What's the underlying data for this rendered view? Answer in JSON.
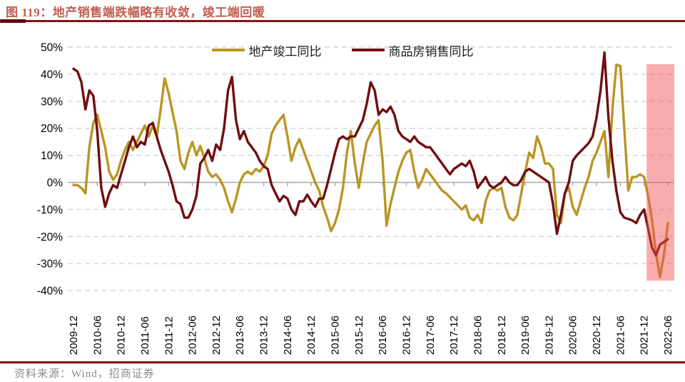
{
  "header": {
    "title": "图 119：地产销售端跌幅略有收敛，竣工端回暖"
  },
  "footer": {
    "source_label": "资料来源：Wind，招商证券"
  },
  "colors": {
    "title_text": "#C05F52",
    "rule_dark_red": "#7D1618",
    "grid_dashed": "#D5D5D5",
    "grid_zero": "#A8A8A8",
    "axis_text": "#000000",
    "highlight_band": "#F24E4E",
    "footer_text": "#8C8C8C"
  },
  "chart_data": {
    "type": "line",
    "title": "",
    "xlabel": "",
    "ylabel": "",
    "y_unit": "%",
    "ylim": [
      -40,
      50
    ],
    "grid": "horizontal-dashed",
    "legend_position": "top-center",
    "y_ticks": [
      {
        "v": 50,
        "label": "50%"
      },
      {
        "v": 40,
        "label": "40%"
      },
      {
        "v": 30,
        "label": "30%"
      },
      {
        "v": 20,
        "label": "20%"
      },
      {
        "v": 10,
        "label": "10%"
      },
      {
        "v": 0,
        "label": "0%"
      },
      {
        "v": -10,
        "label": "-10%"
      },
      {
        "v": -20,
        "label": "-20%"
      },
      {
        "v": -30,
        "label": "-30%"
      },
      {
        "v": -40,
        "label": "-40%"
      }
    ],
    "x_start": "2009-12",
    "x_end": "2022-06",
    "x_step_months": 1,
    "x_tick_every_months": 6,
    "x_tick_labels": [
      "2009-12",
      "2010-06",
      "2010-12",
      "2011-06",
      "2011-12",
      "2012-06",
      "2012-12",
      "2013-06",
      "2013-12",
      "2014-06",
      "2014-12",
      "2015-06",
      "2015-12",
      "2016-06",
      "2016-12",
      "2017-06",
      "2017-12",
      "2018-06",
      "2018-12",
      "2019-06",
      "2019-12",
      "2020-06",
      "2020-12",
      "2021-06",
      "2021-12",
      "2022-06"
    ],
    "highlight_region": {
      "from": "2022-01",
      "to": "2022-06",
      "color": "#F24E4E",
      "opacity": 0.47
    },
    "series": [
      {
        "name": "地产竣工同比",
        "color": "#BA9523",
        "values": [
          -1,
          -1,
          -2,
          -4,
          13,
          22,
          25,
          19,
          13,
          4,
          1,
          3,
          8,
          12,
          15,
          12,
          15,
          18,
          21,
          17,
          21,
          17,
          27,
          38.5,
          33,
          26,
          19,
          8,
          5,
          11,
          15,
          10,
          13.5,
          9,
          4,
          2,
          3,
          1,
          -2,
          -7,
          -11,
          -6,
          0,
          3,
          4,
          3,
          5,
          4,
          6,
          10,
          18,
          21,
          23,
          25,
          17,
          8,
          13,
          16,
          12,
          8,
          4,
          0,
          -3,
          -9,
          -13,
          -18,
          -15,
          -10,
          -2,
          11,
          19,
          7,
          -2,
          7,
          15,
          18,
          21,
          23,
          8,
          -16,
          -8,
          -2,
          4,
          8,
          11,
          12,
          4,
          -2,
          1,
          5,
          3,
          1,
          -1,
          -3,
          -4,
          -5.5,
          -7,
          -8.5,
          -10,
          -8.5,
          -13,
          -14,
          -12,
          -15,
          -7,
          -3,
          -2,
          -3,
          -2,
          -9,
          -13,
          -14,
          -12,
          -4,
          4,
          11,
          9,
          17,
          13,
          7,
          7,
          5,
          -12,
          -15,
          -4,
          -2,
          -9,
          -12,
          -7,
          -2,
          2,
          8,
          11,
          15,
          19,
          2,
          27,
          43.5,
          43,
          20,
          -3,
          2,
          2,
          3,
          2,
          -5,
          -14,
          -26,
          -35,
          -27,
          -15
        ]
      },
      {
        "name": "商品房销售同比",
        "color": "#6F0E10",
        "values": [
          42,
          41,
          37,
          27,
          34,
          32,
          19,
          -2,
          -9,
          -4,
          -1,
          -2,
          3,
          8,
          13,
          17,
          13,
          15,
          14,
          21,
          22,
          17,
          12,
          8,
          4,
          -1,
          -7,
          -8,
          -13,
          -13,
          -10,
          -5,
          7,
          9,
          12,
          8,
          14,
          12,
          20,
          34,
          39,
          23,
          16,
          19,
          15,
          13,
          11,
          8,
          6,
          5,
          -1,
          -4,
          -7,
          -5,
          -6,
          -10,
          -12,
          -7,
          -7,
          -4.5,
          -7,
          -9,
          -6,
          -6,
          -1,
          5,
          11,
          16,
          17,
          16,
          17,
          17,
          20,
          23,
          29,
          37,
          34,
          25,
          27,
          26,
          28,
          25,
          19,
          17,
          16,
          15,
          17,
          15,
          14,
          13,
          13,
          11,
          9,
          7,
          5,
          3,
          5,
          6,
          7,
          6,
          8,
          4,
          -2,
          0,
          2,
          -1,
          -2,
          -1,
          0,
          2,
          0,
          -1,
          -1,
          1,
          4,
          5,
          4,
          3,
          2,
          1,
          0,
          -8,
          -19,
          -12,
          -4,
          0,
          8,
          10,
          11.5,
          13,
          14.5,
          17,
          24,
          34,
          48,
          24,
          8,
          -3,
          -11,
          -13,
          -13.5,
          -14,
          -15,
          -12,
          -10,
          -17,
          -24,
          -27,
          -23,
          -22,
          -21
        ]
      }
    ]
  }
}
